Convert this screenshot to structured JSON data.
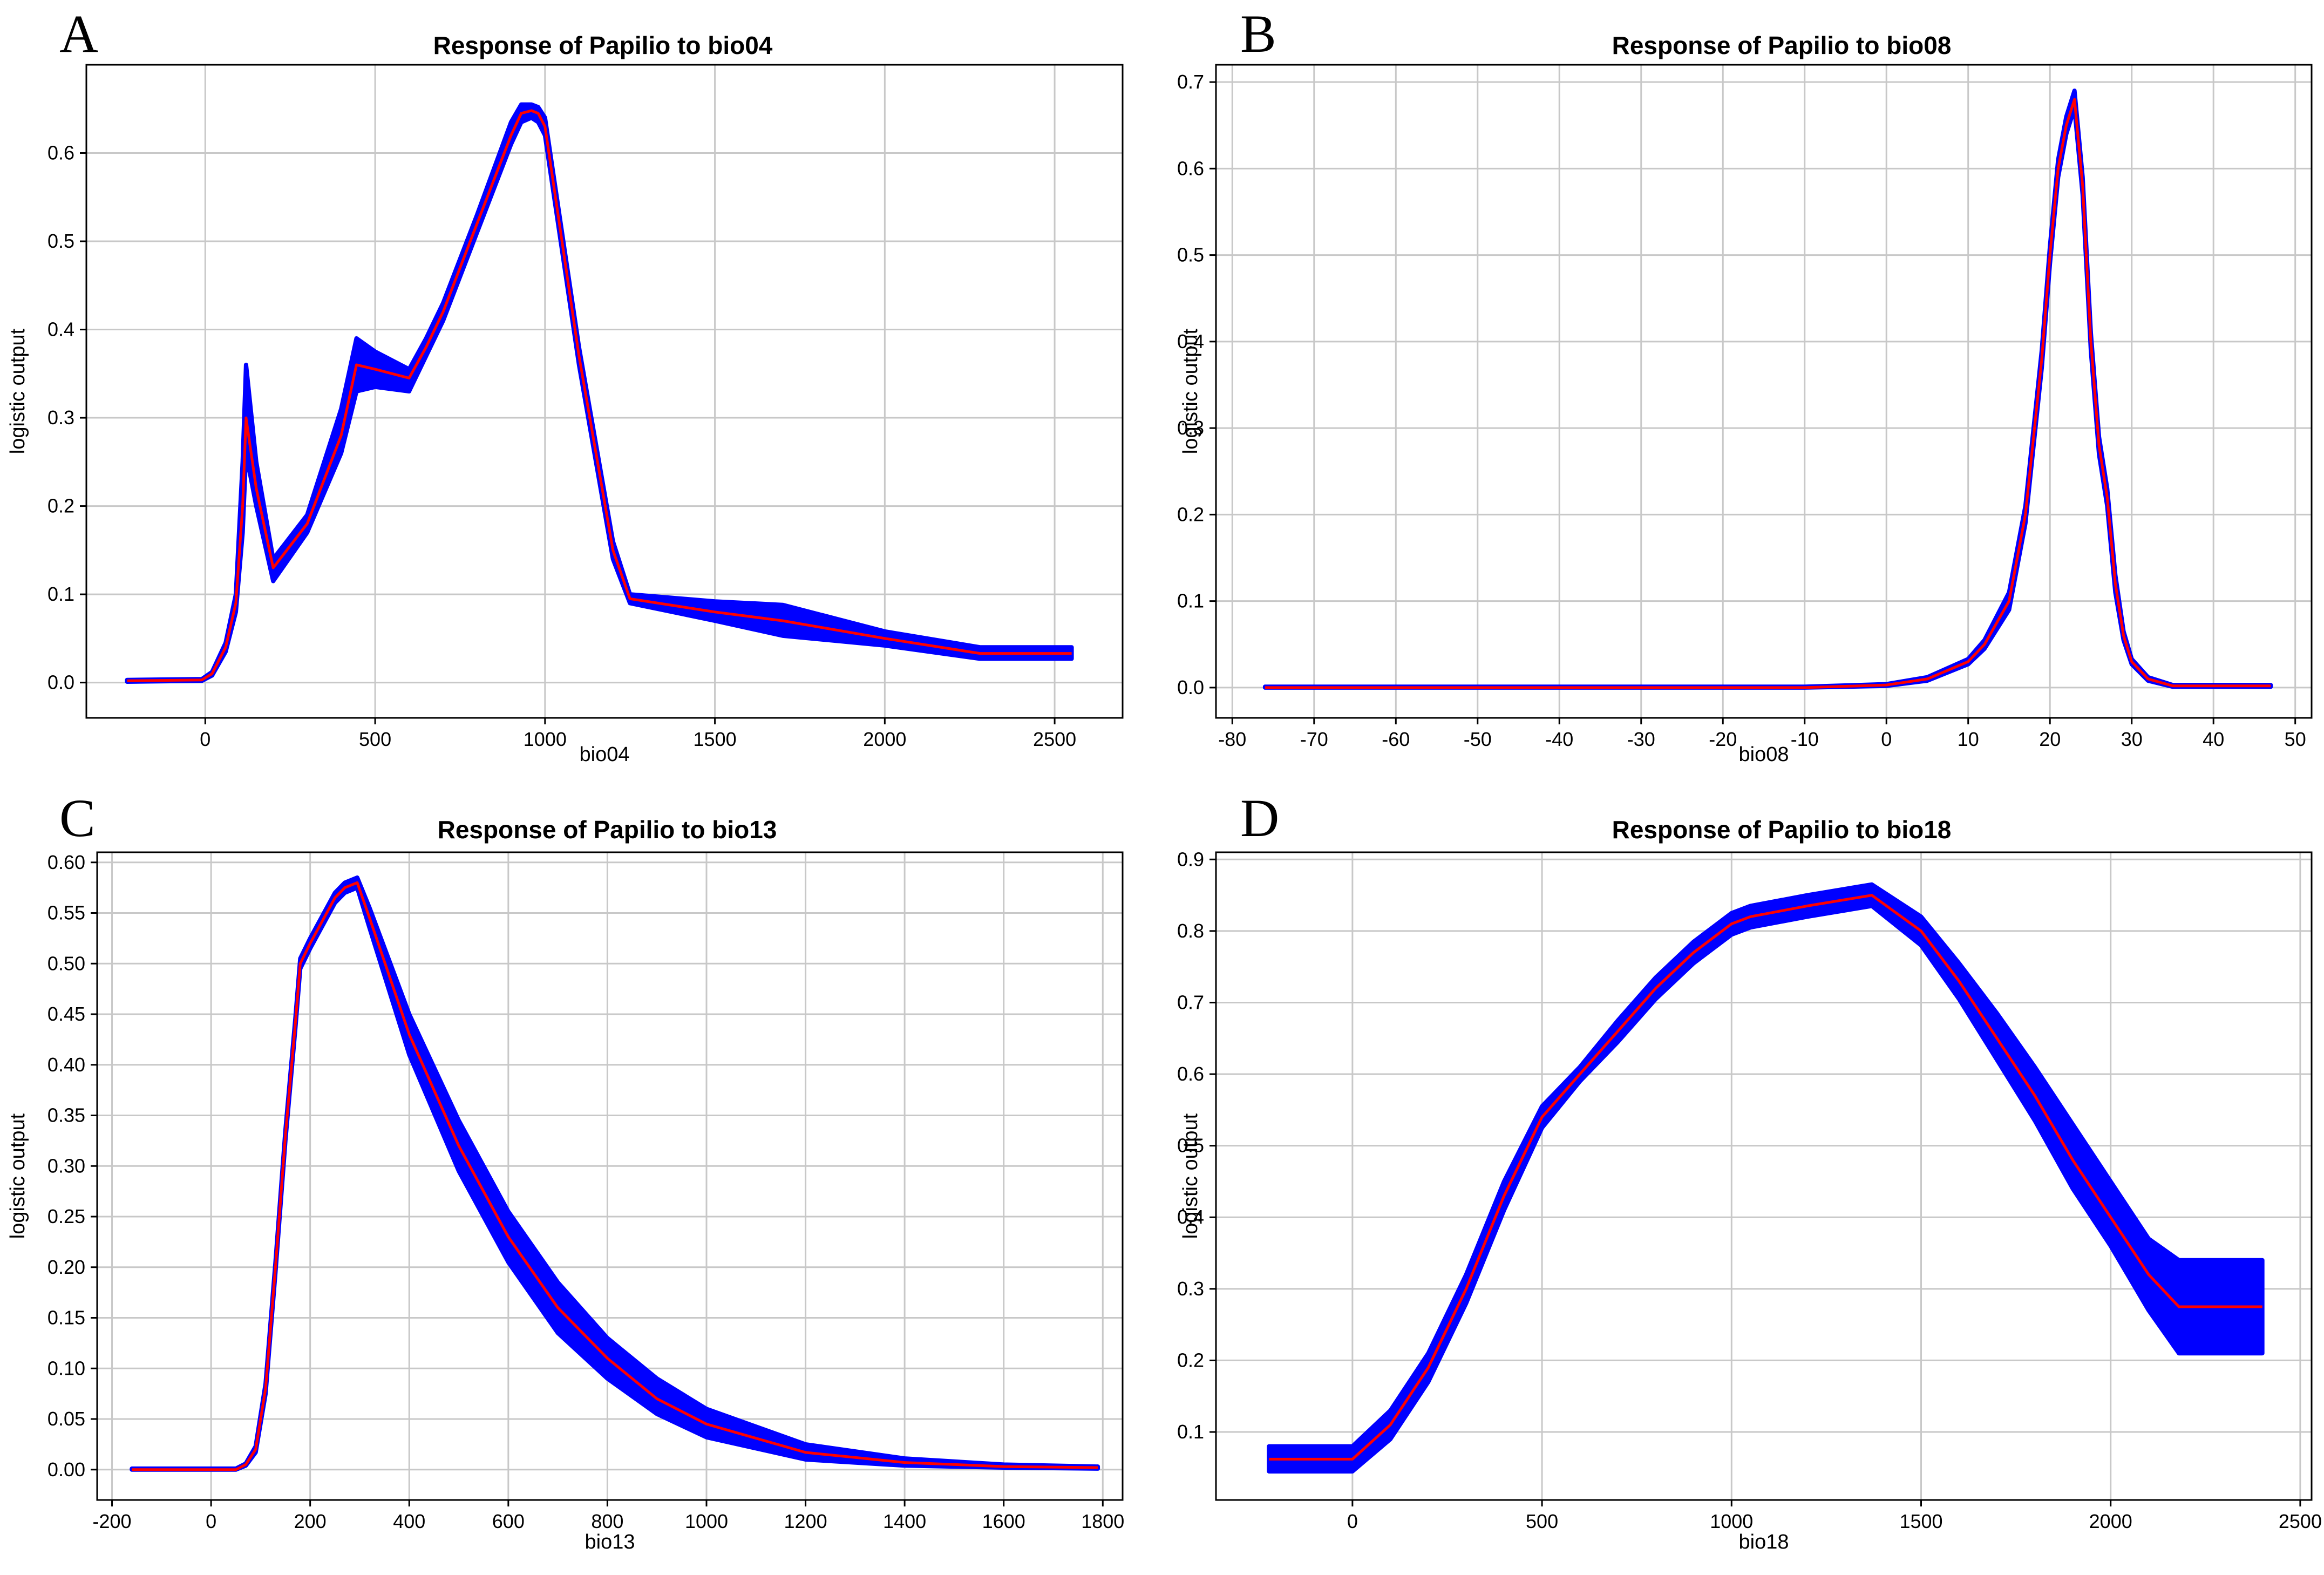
{
  "chart_data": [
    {
      "panel": "A",
      "type": "line",
      "title": "Response of Papilio to bio04",
      "xlabel": "bio04",
      "ylabel": "logistic output",
      "xlim": [
        -350,
        2700
      ],
      "ylim": [
        -0.04,
        0.7
      ],
      "xticks": [
        0,
        500,
        1000,
        1500,
        2000,
        2500
      ],
      "yticks": [
        0.0,
        0.1,
        0.2,
        0.3,
        0.4,
        0.5,
        0.6
      ],
      "ytick_decimals": 1,
      "colors": {
        "band": "#0000ff",
        "mean": "#ff0000"
      },
      "series": [
        {
          "name": "mean",
          "x": [
            -230,
            -10,
            20,
            60,
            90,
            110,
            120,
            150,
            200,
            300,
            400,
            445,
            500,
            600,
            650,
            700,
            800,
            900,
            930,
            960,
            980,
            1000,
            1100,
            1200,
            1250,
            1500,
            1700,
            2000,
            2280,
            2550
          ],
          "y": [
            0.002,
            0.003,
            0.01,
            0.04,
            0.09,
            0.2,
            0.3,
            0.22,
            0.13,
            0.18,
            0.28,
            0.36,
            0.355,
            0.345,
            0.38,
            0.42,
            0.52,
            0.62,
            0.645,
            0.648,
            0.645,
            0.63,
            0.37,
            0.15,
            0.095,
            0.08,
            0.07,
            0.05,
            0.033,
            0.033
          ]
        },
        {
          "name": "band-upper",
          "x": [
            -230,
            -10,
            20,
            60,
            90,
            110,
            120,
            150,
            200,
            300,
            400,
            445,
            500,
            600,
            650,
            700,
            800,
            900,
            930,
            960,
            980,
            1000,
            1100,
            1200,
            1250,
            1500,
            1700,
            2000,
            2280,
            2550
          ],
          "y": [
            0.003,
            0.004,
            0.012,
            0.045,
            0.1,
            0.25,
            0.36,
            0.25,
            0.14,
            0.19,
            0.31,
            0.39,
            0.375,
            0.355,
            0.39,
            0.43,
            0.53,
            0.635,
            0.655,
            0.655,
            0.652,
            0.64,
            0.38,
            0.16,
            0.1,
            0.092,
            0.088,
            0.058,
            0.04,
            0.04
          ]
        },
        {
          "name": "band-lower",
          "x": [
            -230,
            -10,
            20,
            60,
            90,
            110,
            120,
            150,
            200,
            300,
            400,
            445,
            500,
            600,
            650,
            700,
            800,
            900,
            930,
            960,
            980,
            1000,
            1100,
            1200,
            1250,
            1500,
            1700,
            2000,
            2280,
            2550
          ],
          "y": [
            0.001,
            0.002,
            0.008,
            0.035,
            0.08,
            0.17,
            0.26,
            0.2,
            0.115,
            0.17,
            0.26,
            0.33,
            0.335,
            0.33,
            0.37,
            0.41,
            0.51,
            0.61,
            0.635,
            0.64,
            0.635,
            0.62,
            0.36,
            0.14,
            0.09,
            0.07,
            0.053,
            0.042,
            0.027,
            0.027
          ]
        }
      ]
    },
    {
      "panel": "B",
      "type": "line",
      "title": "Response of Papilio to bio08",
      "xlabel": "bio08",
      "ylabel": "logistic output",
      "xlim": [
        -82,
        52
      ],
      "ylim": [
        -0.035,
        0.72
      ],
      "xticks": [
        -80,
        -70,
        -60,
        -50,
        -40,
        -30,
        -20,
        -10,
        0,
        10,
        20,
        30,
        40,
        50
      ],
      "yticks": [
        0.0,
        0.1,
        0.2,
        0.3,
        0.4,
        0.5,
        0.6,
        0.7
      ],
      "ytick_decimals": 1,
      "colors": {
        "band": "#0000ff",
        "mean": "#ff0000"
      },
      "series": [
        {
          "name": "mean",
          "x": [
            -76,
            -10,
            0,
            5,
            10,
            12,
            15,
            17,
            19,
            20,
            21,
            22,
            23,
            24,
            25,
            26,
            27,
            28,
            29,
            30,
            32,
            35,
            47
          ],
          "y": [
            0.0,
            0.0,
            0.003,
            0.01,
            0.03,
            0.05,
            0.1,
            0.2,
            0.38,
            0.5,
            0.6,
            0.65,
            0.68,
            0.58,
            0.4,
            0.28,
            0.22,
            0.12,
            0.06,
            0.03,
            0.01,
            0.002,
            0.002
          ]
        },
        {
          "name": "band-upper",
          "x": [
            -76,
            -10,
            0,
            5,
            10,
            12,
            15,
            17,
            19,
            20,
            21,
            22,
            23,
            24,
            25,
            26,
            27,
            28,
            29,
            30,
            32,
            35,
            47
          ],
          "y": [
            0.001,
            0.001,
            0.004,
            0.012,
            0.033,
            0.055,
            0.11,
            0.21,
            0.39,
            0.51,
            0.61,
            0.66,
            0.69,
            0.59,
            0.41,
            0.29,
            0.23,
            0.13,
            0.065,
            0.033,
            0.012,
            0.003,
            0.003
          ]
        },
        {
          "name": "band-lower",
          "x": [
            -76,
            -10,
            0,
            5,
            10,
            12,
            15,
            17,
            19,
            20,
            21,
            22,
            23,
            24,
            25,
            26,
            27,
            28,
            29,
            30,
            32,
            35,
            47
          ],
          "y": [
            0.0,
            0.0,
            0.002,
            0.008,
            0.027,
            0.045,
            0.09,
            0.19,
            0.37,
            0.49,
            0.59,
            0.64,
            0.67,
            0.57,
            0.39,
            0.27,
            0.21,
            0.11,
            0.055,
            0.027,
            0.008,
            0.001,
            0.001
          ]
        }
      ]
    },
    {
      "panel": "C",
      "type": "line",
      "title": "Response of Papilio to bio13",
      "xlabel": "bio13",
      "ylabel": "logistic output",
      "xlim": [
        -230,
        1840
      ],
      "ylim": [
        -0.03,
        0.61
      ],
      "xticks": [
        -200,
        0,
        200,
        400,
        600,
        800,
        1000,
        1200,
        1400,
        1600,
        1800
      ],
      "yticks": [
        0.0,
        0.05,
        0.1,
        0.15,
        0.2,
        0.25,
        0.3,
        0.35,
        0.4,
        0.45,
        0.5,
        0.55,
        0.6
      ],
      "ytick_decimals": 2,
      "colors": {
        "band": "#0000ff",
        "mean": "#ff0000"
      },
      "series": [
        {
          "name": "mean",
          "x": [
            -160,
            50,
            70,
            90,
            110,
            130,
            150,
            170,
            180,
            200,
            250,
            270,
            295,
            320,
            400,
            500,
            600,
            700,
            800,
            900,
            1000,
            1200,
            1400,
            1600,
            1790
          ],
          "y": [
            0.0,
            0.0,
            0.005,
            0.02,
            0.08,
            0.2,
            0.33,
            0.44,
            0.5,
            0.52,
            0.565,
            0.575,
            0.58,
            0.545,
            0.43,
            0.32,
            0.23,
            0.16,
            0.11,
            0.07,
            0.045,
            0.017,
            0.007,
            0.003,
            0.002
          ]
        },
        {
          "name": "band-upper",
          "x": [
            -160,
            50,
            70,
            90,
            110,
            130,
            150,
            170,
            180,
            200,
            250,
            270,
            295,
            320,
            400,
            500,
            600,
            700,
            800,
            900,
            1000,
            1200,
            1400,
            1600,
            1790
          ],
          "y": [
            0.001,
            0.001,
            0.006,
            0.023,
            0.085,
            0.205,
            0.335,
            0.445,
            0.505,
            0.525,
            0.57,
            0.58,
            0.585,
            0.555,
            0.45,
            0.345,
            0.255,
            0.185,
            0.13,
            0.09,
            0.06,
            0.025,
            0.011,
            0.005,
            0.003
          ]
        },
        {
          "name": "band-lower",
          "x": [
            -160,
            50,
            70,
            90,
            110,
            130,
            150,
            170,
            180,
            200,
            250,
            270,
            295,
            320,
            400,
            500,
            600,
            700,
            800,
            900,
            1000,
            1200,
            1400,
            1600,
            1790
          ],
          "y": [
            0.0,
            0.0,
            0.004,
            0.017,
            0.075,
            0.195,
            0.325,
            0.435,
            0.495,
            0.515,
            0.56,
            0.57,
            0.575,
            0.535,
            0.41,
            0.295,
            0.205,
            0.135,
            0.09,
            0.055,
            0.032,
            0.01,
            0.004,
            0.002,
            0.001
          ]
        }
      ]
    },
    {
      "panel": "D",
      "type": "line",
      "title": "Response of Papilio to bio18",
      "xlabel": "bio18",
      "ylabel": "logistic output",
      "xlim": [
        -360,
        2530
      ],
      "ylim": [
        0.005,
        0.91
      ],
      "xticks": [
        0,
        500,
        1000,
        1500,
        2000,
        2500
      ],
      "yticks": [
        0.1,
        0.2,
        0.3,
        0.4,
        0.5,
        0.6,
        0.7,
        0.8,
        0.9
      ],
      "ytick_decimals": 1,
      "colors": {
        "band": "#0000ff",
        "mean": "#ff0000"
      },
      "series": [
        {
          "name": "mean",
          "x": [
            -220,
            0,
            100,
            200,
            300,
            400,
            500,
            600,
            700,
            800,
            900,
            1000,
            1050,
            1200,
            1370,
            1500,
            1600,
            1700,
            1800,
            1900,
            2000,
            2100,
            2180,
            2400
          ],
          "y": [
            0.062,
            0.062,
            0.11,
            0.19,
            0.3,
            0.43,
            0.54,
            0.6,
            0.66,
            0.72,
            0.77,
            0.81,
            0.82,
            0.835,
            0.85,
            0.8,
            0.73,
            0.65,
            0.57,
            0.48,
            0.4,
            0.32,
            0.275,
            0.275
          ]
        },
        {
          "name": "band-upper",
          "x": [
            -220,
            0,
            100,
            200,
            300,
            400,
            500,
            600,
            700,
            800,
            900,
            1000,
            1050,
            1200,
            1370,
            1500,
            1600,
            1700,
            1800,
            1900,
            2000,
            2100,
            2180,
            2400
          ],
          "y": [
            0.08,
            0.08,
            0.13,
            0.21,
            0.32,
            0.45,
            0.555,
            0.61,
            0.675,
            0.735,
            0.785,
            0.825,
            0.835,
            0.85,
            0.865,
            0.82,
            0.755,
            0.685,
            0.61,
            0.53,
            0.45,
            0.37,
            0.34,
            0.34
          ]
        },
        {
          "name": "band-lower",
          "x": [
            -220,
            0,
            100,
            200,
            300,
            400,
            500,
            600,
            700,
            800,
            900,
            1000,
            1050,
            1200,
            1370,
            1500,
            1600,
            1700,
            1800,
            1900,
            2000,
            2100,
            2180,
            2400
          ],
          "y": [
            0.045,
            0.045,
            0.09,
            0.17,
            0.28,
            0.41,
            0.525,
            0.59,
            0.645,
            0.705,
            0.755,
            0.795,
            0.805,
            0.82,
            0.835,
            0.78,
            0.705,
            0.62,
            0.535,
            0.44,
            0.36,
            0.27,
            0.21,
            0.21
          ]
        }
      ]
    }
  ]
}
